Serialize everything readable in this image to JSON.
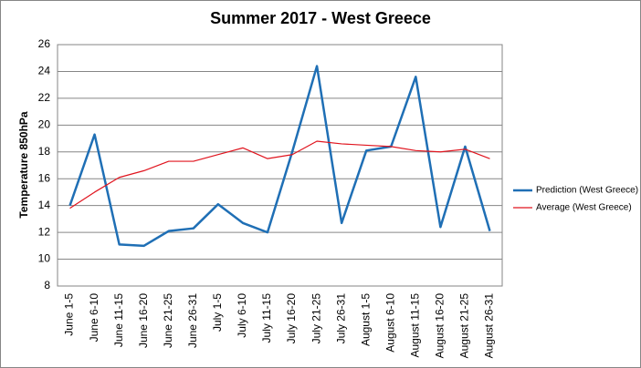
{
  "chart_data": {
    "type": "line",
    "title": "Summer 2017 - West Greece",
    "y_label": "Temperature 850hPa",
    "categories": [
      "June 1-5",
      "June 6-10",
      "June 11-15",
      "June 16-20",
      "June 21-25",
      "June 26-31",
      "July 1-5",
      "July 6-10",
      "July 11-15",
      "July 16-20",
      "July 21-25",
      "July 26-31",
      "August 1-5",
      "August 6-10",
      "August 11-15",
      "August 16-20",
      "August 21-25",
      "August 26-31"
    ],
    "series": [
      {
        "name": "Prediction (West Greece)",
        "color": "#1f6fb5",
        "width": 2.5,
        "values": [
          14.0,
          19.3,
          11.1,
          11.0,
          12.1,
          12.3,
          14.1,
          12.7,
          12.0,
          18.0,
          24.4,
          12.7,
          18.1,
          18.4,
          23.6,
          12.4,
          18.4,
          12.1
        ]
      },
      {
        "name": "Average (West Greece)",
        "color": "#e0141e",
        "width": 1.2,
        "values": [
          13.8,
          15.0,
          16.1,
          16.6,
          17.3,
          17.3,
          17.8,
          18.3,
          17.5,
          17.8,
          18.8,
          18.6,
          18.5,
          18.4,
          18.1,
          18.0,
          18.2,
          17.5
        ]
      }
    ],
    "ylim": [
      8,
      26
    ],
    "yticks": [
      8,
      10,
      12,
      14,
      16,
      18,
      20,
      22,
      24,
      26
    ],
    "grid": true,
    "legend": "right"
  }
}
